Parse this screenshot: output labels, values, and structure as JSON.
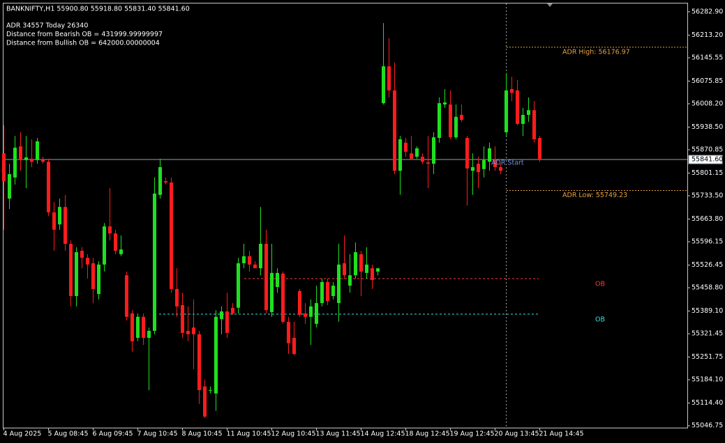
{
  "chart_data": {
    "type": "candlestick",
    "header": "BANKNIFTY,H1  55900.80 55918.80 55831.40 55841.60",
    "info": [
      "ADR 34557  Today 26340",
      "Distance from Bearish OB = 431999.99999997",
      "Distance from Bullish OB = 642000.00000004"
    ],
    "categories": [
      "4 Aug 2025",
      null,
      null,
      null,
      null,
      null,
      null,
      null,
      "5 Aug 08:45",
      null,
      null,
      null,
      null,
      null,
      null,
      null,
      "6 Aug 09:45",
      null,
      null,
      null,
      null,
      null,
      null,
      null,
      "7 Aug 10:45",
      null,
      null,
      null,
      null,
      null,
      null,
      null,
      "8 Aug 10:45",
      null,
      null,
      null,
      null,
      null,
      null,
      null,
      "11 Aug 10:45",
      null,
      null,
      null,
      null,
      null,
      null,
      null,
      "12 Aug 10:45",
      null,
      null,
      null,
      null,
      null,
      null,
      null,
      "13 Aug 11:45",
      null,
      null,
      null,
      null,
      null,
      null,
      null,
      "14 Aug 12:45",
      null,
      null,
      null,
      null,
      null,
      null,
      null,
      "18 Aug 12:45",
      null,
      null,
      null,
      null,
      null,
      null,
      null,
      "19 Aug 12:45",
      null,
      null,
      null,
      null,
      null,
      null,
      null,
      "20 Aug 13:45",
      null,
      null,
      null,
      null,
      null,
      null,
      null,
      "21 Aug 14:45"
    ],
    "open": [
      55860,
      55725,
      55788,
      55881,
      55840,
      55844,
      55840,
      55840,
      55835,
      55684,
      55648,
      55700,
      55590,
      55434,
      55569,
      55548,
      55532,
      55440,
      55528,
      55642,
      55621,
      55559,
      55496,
      55382,
      55309,
      55372,
      55309,
      55330,
      55736,
      55777,
      55773,
      55455,
      55407,
      55330,
      55340,
      55320,
      55164,
      55153,
      55143,
      55365,
      55388,
      55399,
      55399,
      55532,
      55553,
      55528,
      55517,
      55590,
      55386,
      55461,
      55501,
      55357,
      55309,
      55449,
      55382,
      55372,
      55351,
      55413,
      55476,
      55434,
      55413,
      55532,
      55465,
      55496,
      55559,
      55503,
      55517,
      55507,
      56010,
      56120,
      56048,
      55808,
      55892,
      55860,
      55850,
      55850,
      55833,
      55829,
      55906,
      56006,
      56006,
      55908,
      55975,
      55906,
      55808,
      55829,
      55813,
      55835,
      55840,
      55819,
      55923,
      56052,
      56048,
      55948,
      55975,
      55989,
      55906
    ],
    "high": [
      55944,
      55829,
      55912,
      55923,
      55912,
      55902,
      55906,
      55850,
      55844,
      55715,
      55725,
      55736,
      55600,
      55580,
      55580,
      55559,
      55548,
      55538,
      55652,
      55756,
      55632,
      55615,
      55507,
      55392,
      55382,
      55382,
      55340,
      55788,
      55844,
      55788,
      55788,
      55517,
      55444,
      55403,
      55424,
      55330,
      55184,
      55164,
      55392,
      55403,
      55444,
      55413,
      55548,
      55590,
      55569,
      55538,
      55700,
      55632,
      55590,
      55517,
      55507,
      55372,
      55357,
      55455,
      55413,
      55424,
      55465,
      55486,
      55486,
      55476,
      55590,
      55615,
      55559,
      55594,
      55569,
      55580,
      55528,
      55517,
      56249,
      56204,
      56131,
      55912,
      55906,
      55912,
      55881,
      55860,
      55912,
      55923,
      56027,
      56052,
      56048,
      56006,
      56006,
      55912,
      55860,
      55850,
      55881,
      55892,
      55881,
      55829,
      56100,
      56089,
      56079,
      55996,
      56027,
      56016,
      55912
    ],
    "low": [
      55632,
      55694,
      55767,
      55808,
      55756,
      55819,
      55829,
      55829,
      55673,
      55569,
      55632,
      55569,
      55403,
      55403,
      55517,
      55486,
      55413,
      55424,
      55507,
      55600,
      55559,
      55553,
      55361,
      55268,
      55299,
      55288,
      55153,
      55320,
      55725,
      55767,
      55444,
      55372,
      55309,
      55299,
      55216,
      55112,
      55070,
      55143,
      55091,
      55320,
      55309,
      55378,
      55382,
      55517,
      55507,
      55517,
      55496,
      55382,
      55372,
      55444,
      55351,
      55261,
      55257,
      55372,
      55351,
      55288,
      55340,
      55403,
      55407,
      55424,
      55357,
      55486,
      55444,
      55486,
      55434,
      55486,
      55455,
      55496,
      56006,
      56027,
      55798,
      55736,
      55850,
      55840,
      55844,
      55829,
      55756,
      55798,
      55892,
      55996,
      55902,
      55902,
      55954,
      55704,
      55736,
      55756,
      55788,
      55808,
      55808,
      55798,
      55912,
      56016,
      55944,
      55912,
      55954,
      55892,
      55835
    ],
    "close": [
      55777,
      55798,
      55877,
      55840,
      55848,
      55835,
      55896,
      55835,
      55684,
      55632,
      55700,
      55590,
      55434,
      55565,
      55548,
      55528,
      55455,
      55528,
      55642,
      55621,
      55569,
      55573,
      55372,
      55299,
      55372,
      55309,
      55330,
      55740,
      55819,
      55773,
      55455,
      55403,
      55324,
      55320,
      55320,
      55153,
      55074,
      55153,
      55372,
      55388,
      55324,
      55382,
      55532,
      55553,
      55528,
      55517,
      55590,
      55392,
      55503,
      55503,
      55357,
      55293,
      55261,
      55378,
      55372,
      55403,
      55413,
      55476,
      55419,
      55465,
      55528,
      55496,
      55496,
      55565,
      55507,
      55528,
      55482,
      55517,
      56120,
      56048,
      55808,
      55902,
      55865,
      55844,
      55875,
      55835,
      55829,
      55908,
      56010,
      56012,
      55908,
      55969,
      55960,
      55815,
      55819,
      55804,
      55840,
      55875,
      55819,
      55808,
      56048,
      56041,
      55948,
      55975,
      55989,
      55902,
      55841.6
    ],
    "up_color": "#1fe01f",
    "down_color": "#ff1c1c",
    "ylim": [
      55040.9,
      56307.6
    ],
    "yticks": [
      {
        "value": 56282.9,
        "label": "56282.90"
      },
      {
        "value": 56213.2,
        "label": "56213.20"
      },
      {
        "value": 56145.55,
        "label": "56145.55"
      },
      {
        "value": 56075.85,
        "label": "56075.85"
      },
      {
        "value": 56008.2,
        "label": "56008.20"
      },
      {
        "value": 55938.5,
        "label": "55938.50"
      },
      {
        "value": 55870.85,
        "label": "55870.85"
      },
      {
        "value": 55801.15,
        "label": "55801.15"
      },
      {
        "value": 55733.5,
        "label": "55733.50"
      },
      {
        "value": 55663.8,
        "label": "55663.80"
      },
      {
        "value": 55596.15,
        "label": "55596.15"
      },
      {
        "value": 55526.45,
        "label": "55526.45"
      },
      {
        "value": 55458.8,
        "label": "55458.80"
      },
      {
        "value": 55389.1,
        "label": "55389.10"
      },
      {
        "value": 55321.45,
        "label": "55321.45"
      },
      {
        "value": 55251.75,
        "label": "55251.75"
      },
      {
        "value": 55184.1,
        "label": "55184.10"
      },
      {
        "value": 55114.4,
        "label": "55114.40"
      },
      {
        "value": 55046.75,
        "label": "55046.75"
      }
    ],
    "last_price": {
      "value": 55841.6,
      "label": "55841.60"
    },
    "adr_start_label": "ADR Start",
    "adr_levels": [
      {
        "text": "ADR High: 56176.97",
        "value": 56176.97
      },
      {
        "text": "ADR Low: 55749.23",
        "value": 55749.23
      }
    ],
    "order_blocks": [
      {
        "text": "OB",
        "value": 55486,
        "color": "#ff3b3b"
      },
      {
        "text": "OB",
        "value": 55380,
        "color": "#3ee0e0"
      }
    ],
    "grid": false
  }
}
